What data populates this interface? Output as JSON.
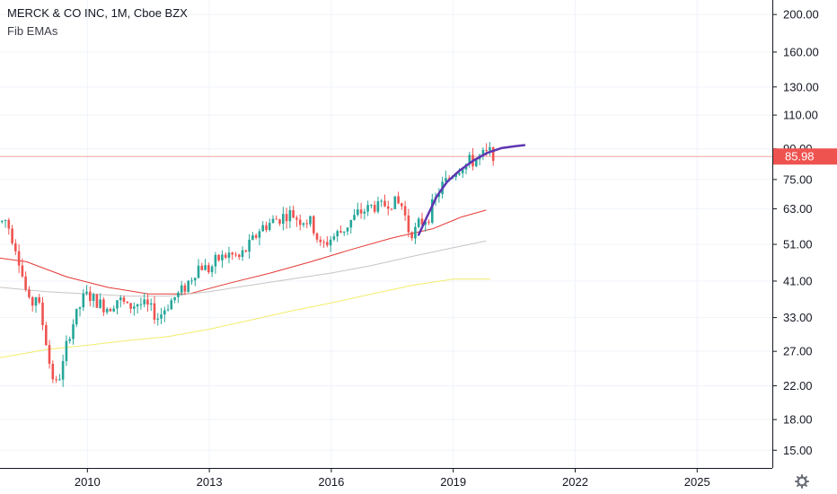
{
  "header": {
    "title": "MERCK & CO INC, 1M, Cboe BZX",
    "indicator": "Fib EMAs"
  },
  "colors": {
    "up": "#26a69a",
    "down": "#ef5350",
    "ema_red": "#e53935",
    "ema_gray": "#c8c4c4",
    "ema_yellow": "#f2ec6b",
    "curve": "#5e35b1",
    "price_line": "#f5a3a0",
    "price_tag": "#ef5350"
  },
  "price_tag": {
    "value": 85.98,
    "label": "85.98"
  },
  "chart_data": {
    "type": "candlestick",
    "title": "MERCK & CO INC, 1M, Cboe BZX",
    "y_scale": "log",
    "ylim": [
      13.5,
      218
    ],
    "xlim": [
      2007.85,
      2026.85
    ],
    "x_ticks": [
      "2010",
      "2013",
      "2016",
      "2019",
      "2022",
      "2025"
    ],
    "y_ticks": [
      "200.00",
      "160.00",
      "130.00",
      "110.00",
      "90.00",
      "75.00",
      "63.00",
      "51.00",
      "41.00",
      "33.00",
      "27.00",
      "22.00",
      "18.00",
      "15.00"
    ],
    "last_price": 85.98,
    "close_path": [
      [
        2007.85,
        58
      ],
      [
        2008.0,
        59
      ],
      [
        2008.25,
        50
      ],
      [
        2008.45,
        40
      ],
      [
        2008.6,
        35
      ],
      [
        2008.75,
        38
      ],
      [
        2008.95,
        30
      ],
      [
        2009.1,
        24
      ],
      [
        2009.25,
        22
      ],
      [
        2009.4,
        25
      ],
      [
        2009.55,
        30
      ],
      [
        2009.75,
        34
      ],
      [
        2009.95,
        38
      ],
      [
        2010.25,
        36
      ],
      [
        2010.5,
        35
      ],
      [
        2010.75,
        37
      ],
      [
        2011.0,
        35
      ],
      [
        2011.25,
        36
      ],
      [
        2011.5,
        35
      ],
      [
        2011.75,
        33
      ],
      [
        2012.0,
        36
      ],
      [
        2012.25,
        38
      ],
      [
        2012.5,
        41
      ],
      [
        2012.75,
        45
      ],
      [
        2013.0,
        44
      ],
      [
        2013.25,
        47
      ],
      [
        2013.5,
        48
      ],
      [
        2013.75,
        47
      ],
      [
        2014.0,
        51
      ],
      [
        2014.25,
        56
      ],
      [
        2014.5,
        58
      ],
      [
        2014.75,
        60
      ],
      [
        2015.0,
        61
      ],
      [
        2015.25,
        59
      ],
      [
        2015.5,
        58
      ],
      [
        2015.75,
        50
      ],
      [
        2016.0,
        53
      ],
      [
        2016.25,
        55
      ],
      [
        2016.5,
        59
      ],
      [
        2016.75,
        62
      ],
      [
        2017.0,
        64
      ],
      [
        2017.25,
        64
      ],
      [
        2017.5,
        66
      ],
      [
        2017.75,
        64
      ],
      [
        2017.9,
        56
      ],
      [
        2018.05,
        55
      ],
      [
        2018.2,
        58
      ],
      [
        2018.35,
        60
      ],
      [
        2018.5,
        64
      ],
      [
        2018.65,
        70
      ],
      [
        2018.8,
        74
      ],
      [
        2019.0,
        78
      ],
      [
        2019.2,
        81
      ],
      [
        2019.4,
        83
      ],
      [
        2019.6,
        85
      ],
      [
        2019.8,
        87
      ],
      [
        2019.97,
        89
      ],
      [
        2020.05,
        86
      ]
    ],
    "series": [
      {
        "name": "EMA",
        "color": "#e53935",
        "points": [
          [
            2007.85,
            47
          ],
          [
            2008.5,
            46
          ],
          [
            2009.5,
            42
          ],
          [
            2010.5,
            39.5
          ],
          [
            2011.5,
            38
          ],
          [
            2012.5,
            38
          ],
          [
            2013.5,
            40.5
          ],
          [
            2014.5,
            43
          ],
          [
            2015.5,
            46
          ],
          [
            2016.5,
            49.5
          ],
          [
            2017.5,
            53
          ],
          [
            2018.5,
            56
          ],
          [
            2019.2,
            60
          ],
          [
            2019.8,
            62.5
          ]
        ]
      },
      {
        "name": "EMA",
        "color": "#c8c4c4",
        "points": [
          [
            2007.85,
            39.5
          ],
          [
            2009.0,
            38.5
          ],
          [
            2010.0,
            38
          ],
          [
            2011.0,
            37.5
          ],
          [
            2012.0,
            37.5
          ],
          [
            2013.0,
            38.5
          ],
          [
            2014.0,
            40
          ],
          [
            2015.0,
            41.5
          ],
          [
            2016.0,
            43
          ],
          [
            2017.0,
            45
          ],
          [
            2018.0,
            47.5
          ],
          [
            2019.0,
            50
          ],
          [
            2019.8,
            52
          ]
        ]
      },
      {
        "name": "EMA",
        "color": "#f2ec6b",
        "points": [
          [
            2007.85,
            26
          ],
          [
            2009.0,
            27.3
          ],
          [
            2010.0,
            28
          ],
          [
            2011.0,
            28.8
          ],
          [
            2012.0,
            29.5
          ],
          [
            2013.0,
            30.8
          ],
          [
            2014.0,
            32.5
          ],
          [
            2015.0,
            34.3
          ],
          [
            2016.0,
            36
          ],
          [
            2017.0,
            38
          ],
          [
            2018.0,
            40
          ],
          [
            2019.0,
            41.5
          ],
          [
            2019.9,
            41.5
          ]
        ]
      },
      {
        "name": "Curve",
        "color": "#5e35b1",
        "points": [
          [
            2018.15,
            54
          ],
          [
            2018.35,
            60
          ],
          [
            2018.6,
            68
          ],
          [
            2018.85,
            74
          ],
          [
            2019.15,
            79
          ],
          [
            2019.5,
            84
          ],
          [
            2019.85,
            88
          ],
          [
            2020.2,
            90.5
          ],
          [
            2020.55,
            91.5
          ],
          [
            2020.75,
            92
          ]
        ]
      }
    ]
  }
}
